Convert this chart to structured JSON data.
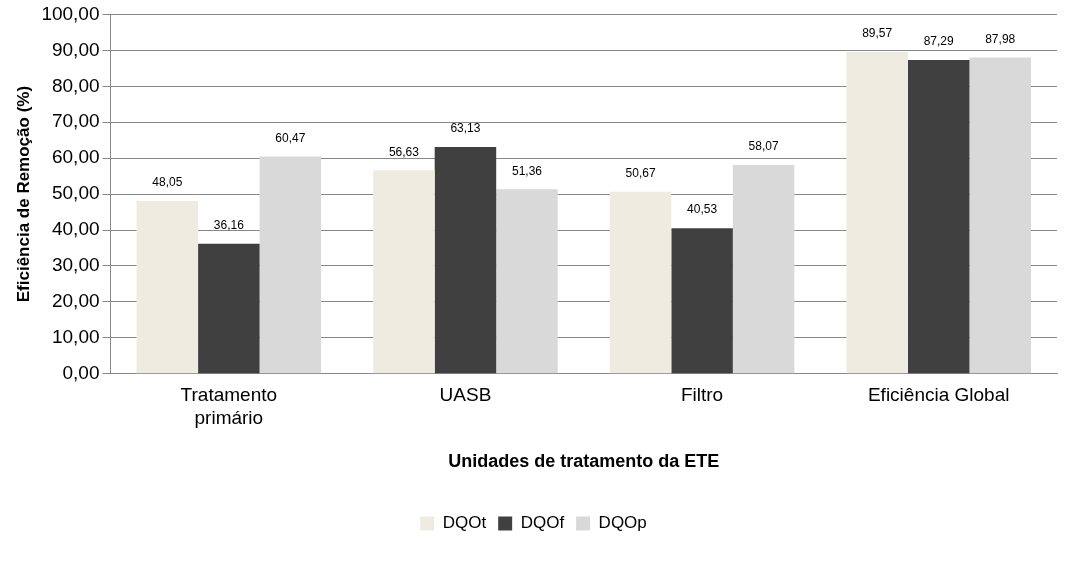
{
  "chart_data": {
    "type": "bar",
    "xlabel": "Unidades de tratamento da ETE",
    "ylabel": "Eficiência de Remoção (%)",
    "categories": [
      "Tratamento primário",
      "UASB",
      "Filtro",
      "Eficiência Global"
    ],
    "series": [
      {
        "name": "DQOt",
        "color": "#eeece1",
        "values": [
          48.05,
          56.63,
          50.67,
          89.57
        ],
        "value_labels": [
          "48,05",
          "56,63",
          "50,67",
          "89,57"
        ]
      },
      {
        "name": "DQOf",
        "color": "#404040",
        "values": [
          36.16,
          63.13,
          40.53,
          87.29
        ],
        "value_labels": [
          "36,16",
          "63,13",
          "40,53",
          "87,29"
        ]
      },
      {
        "name": "DQOp",
        "color": "#d9d9d9",
        "values": [
          60.47,
          51.36,
          58.07,
          87.98
        ],
        "value_labels": [
          "60,47",
          "51,36",
          "58,07",
          "87,98"
        ]
      }
    ],
    "ylim": [
      0,
      100
    ],
    "yticks": [
      {
        "value": 0,
        "label": "0,00"
      },
      {
        "value": 10,
        "label": "10,00"
      },
      {
        "value": 20,
        "label": "20,00"
      },
      {
        "value": 30,
        "label": "30,00"
      },
      {
        "value": 40,
        "label": "40,00"
      },
      {
        "value": 50,
        "label": "50,00"
      },
      {
        "value": 60,
        "label": "60,00"
      },
      {
        "value": 70,
        "label": "70,00"
      },
      {
        "value": 80,
        "label": "80,00"
      },
      {
        "value": 90,
        "label": "90,00"
      },
      {
        "value": 100,
        "label": "100,00"
      }
    ],
    "grid": "y",
    "legend": "bottom"
  }
}
